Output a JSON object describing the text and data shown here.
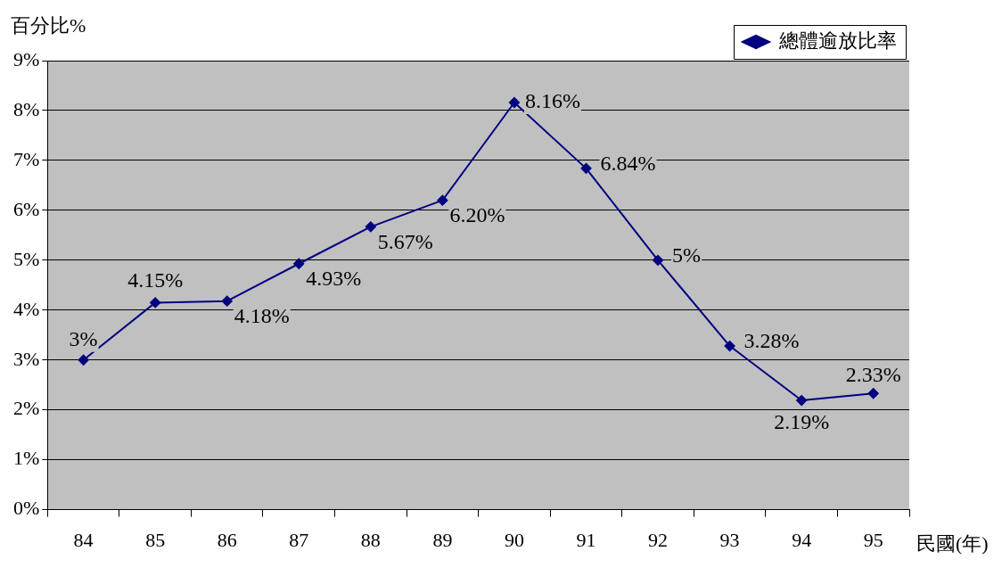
{
  "chart_data": {
    "type": "line",
    "ylabel": "百分比%",
    "xlabel": "民國(年)",
    "categories": [
      "84",
      "85",
      "86",
      "87",
      "88",
      "89",
      "90",
      "91",
      "92",
      "93",
      "94",
      "95"
    ],
    "series": [
      {
        "name": "總體逾放比率",
        "color": "#000080",
        "values": [
          3,
          4.15,
          4.18,
          4.93,
          5.67,
          6.2,
          8.16,
          6.84,
          5,
          3.28,
          2.19,
          2.33
        ],
        "value_labels": [
          "3%",
          "4.15%",
          "4.18%",
          "4.93%",
          "5.67%",
          "6.20%",
          "8.16%",
          "6.84%",
          "5%",
          "3.28%",
          "2.19%",
          "2.33%"
        ]
      }
    ],
    "ylim": [
      0,
      9
    ],
    "yticks": [
      {
        "value": 0,
        "label": "0%"
      },
      {
        "value": 1,
        "label": "1%"
      },
      {
        "value": 2,
        "label": "2%"
      },
      {
        "value": 3,
        "label": "3%"
      },
      {
        "value": 4,
        "label": "4%"
      },
      {
        "value": 5,
        "label": "5%"
      },
      {
        "value": 6,
        "label": "6%"
      },
      {
        "value": 7,
        "label": "7%"
      },
      {
        "value": 8,
        "label": "8%"
      },
      {
        "value": 9,
        "label": "9%"
      }
    ],
    "grid": "y",
    "legend": "top right",
    "marker": "diamond",
    "line_style": "solid"
  }
}
